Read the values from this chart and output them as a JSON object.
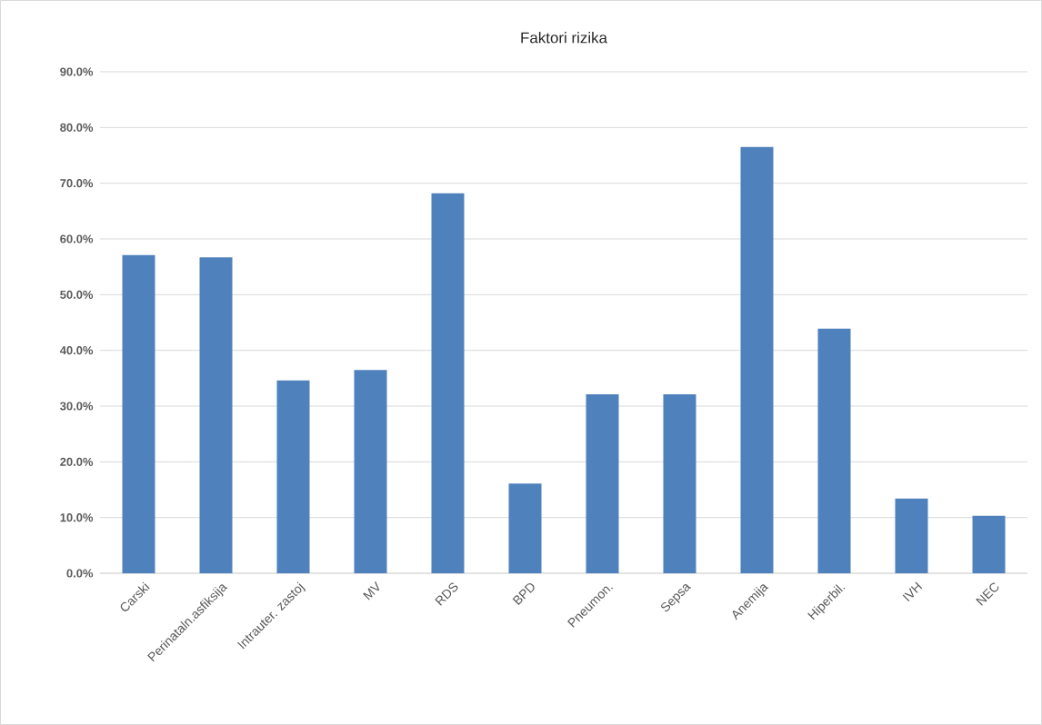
{
  "chart_data": {
    "type": "bar",
    "title": "Faktori rizika",
    "categories": [
      "Carski",
      "Perinataln.asfiksija",
      "Intrauter. zastoj",
      "MV",
      "RDS",
      "BPD",
      "Pneumon.",
      "Sepsa",
      "Anemija",
      "Hiperbil.",
      "IVH",
      "NEC"
    ],
    "values": [
      57.1,
      56.7,
      34.6,
      36.5,
      68.2,
      16.1,
      32.1,
      32.1,
      76.5,
      43.9,
      13.4,
      10.3
    ],
    "color": "#4f81bd",
    "ylim": [
      0,
      90
    ],
    "yticks": [
      {
        "value": 0,
        "label": "0.0%"
      },
      {
        "value": 10,
        "label": "10.0%"
      },
      {
        "value": 20,
        "label": "20.0%"
      },
      {
        "value": 30,
        "label": "30.0%"
      },
      {
        "value": 40,
        "label": "40.0%"
      },
      {
        "value": 50,
        "label": "50.0%"
      },
      {
        "value": 60,
        "label": "60.0%"
      },
      {
        "value": 70,
        "label": "70.0%"
      },
      {
        "value": 80,
        "label": "80.0%"
      },
      {
        "value": 90,
        "label": "90.0%"
      }
    ],
    "grid": "y"
  }
}
